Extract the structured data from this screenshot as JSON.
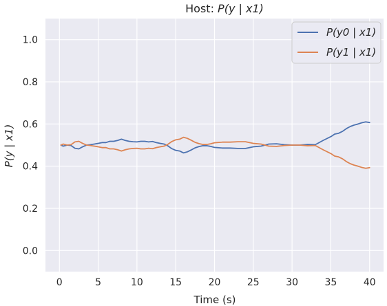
{
  "chart_data": {
    "type": "line",
    "title": {
      "prefix": "Host: ",
      "formula": "P(y | x1)"
    },
    "xlabel": "Time (s)",
    "ylabel": "P(y | x1)",
    "xlim": [
      -1.8,
      41.8
    ],
    "ylim": [
      -0.1,
      1.1
    ],
    "xticks": [
      0,
      5,
      10,
      15,
      20,
      25,
      30,
      35,
      40
    ],
    "yticks": [
      0.0,
      0.2,
      0.4,
      0.6,
      0.8,
      1.0
    ],
    "ytick_labels": [
      "0.0",
      "0.2",
      "0.4",
      "0.6",
      "0.8",
      "1.0"
    ],
    "grid": true,
    "legend_position": "upper right",
    "background": "#eaeaf2",
    "series": [
      {
        "name": "P(y0 | x1)",
        "color": "#4c72b0",
        "x": [
          0.2,
          0.5,
          1,
          1.5,
          2,
          2.5,
          3,
          3.5,
          4,
          4.5,
          5,
          5.5,
          6,
          6.5,
          7,
          7.5,
          8,
          8.5,
          9,
          9.5,
          10,
          10.5,
          11,
          11.5,
          12,
          12.5,
          13,
          13.5,
          14,
          14.5,
          15,
          15.5,
          16,
          16.5,
          17,
          17.5,
          18,
          18.5,
          19,
          19.5,
          20,
          21,
          22,
          23,
          24,
          25,
          26,
          27,
          28,
          29,
          30,
          31,
          32,
          33,
          34,
          35,
          35.5,
          36,
          36.5,
          37,
          37.5,
          38,
          38.5,
          39,
          39.5,
          40
        ],
        "y": [
          0.5,
          0.495,
          0.5,
          0.498,
          0.485,
          0.482,
          0.492,
          0.5,
          0.502,
          0.505,
          0.508,
          0.512,
          0.512,
          0.518,
          0.518,
          0.522,
          0.528,
          0.522,
          0.518,
          0.516,
          0.515,
          0.518,
          0.518,
          0.515,
          0.517,
          0.512,
          0.508,
          0.505,
          0.496,
          0.483,
          0.475,
          0.472,
          0.463,
          0.468,
          0.477,
          0.487,
          0.493,
          0.497,
          0.497,
          0.494,
          0.489,
          0.486,
          0.486,
          0.484,
          0.484,
          0.492,
          0.495,
          0.505,
          0.506,
          0.502,
          0.5,
          0.5,
          0.503,
          0.502,
          0.522,
          0.54,
          0.552,
          0.556,
          0.565,
          0.578,
          0.588,
          0.595,
          0.6,
          0.606,
          0.61,
          0.607
        ]
      },
      {
        "name": "P(y1 | x1)",
        "color": "#dd8452",
        "x": [
          0.2,
          0.5,
          1,
          1.5,
          2,
          2.5,
          3,
          3.5,
          4,
          4.5,
          5,
          5.5,
          6,
          6.5,
          7,
          7.5,
          8,
          8.5,
          9,
          9.5,
          10,
          10.5,
          11,
          11.5,
          12,
          12.5,
          13,
          13.5,
          14,
          14.5,
          15,
          15.5,
          16,
          16.5,
          17,
          17.5,
          18,
          18.5,
          19,
          19.5,
          20,
          21,
          22,
          23,
          24,
          25,
          26,
          27,
          28,
          29,
          30,
          31,
          32,
          33,
          34,
          35,
          35.5,
          36,
          36.5,
          37,
          37.5,
          38,
          38.5,
          39,
          39.5,
          40
        ],
        "y": [
          0.5,
          0.505,
          0.5,
          0.502,
          0.515,
          0.518,
          0.508,
          0.5,
          0.498,
          0.495,
          0.492,
          0.488,
          0.488,
          0.482,
          0.482,
          0.478,
          0.472,
          0.478,
          0.482,
          0.484,
          0.485,
          0.482,
          0.482,
          0.485,
          0.483,
          0.488,
          0.492,
          0.495,
          0.504,
          0.517,
          0.525,
          0.528,
          0.537,
          0.532,
          0.523,
          0.513,
          0.507,
          0.503,
          0.503,
          0.506,
          0.511,
          0.514,
          0.514,
          0.516,
          0.516,
          0.508,
          0.505,
          0.495,
          0.494,
          0.498,
          0.5,
          0.5,
          0.497,
          0.498,
          0.478,
          0.46,
          0.448,
          0.444,
          0.435,
          0.422,
          0.412,
          0.405,
          0.4,
          0.394,
          0.39,
          0.393
        ]
      }
    ]
  }
}
